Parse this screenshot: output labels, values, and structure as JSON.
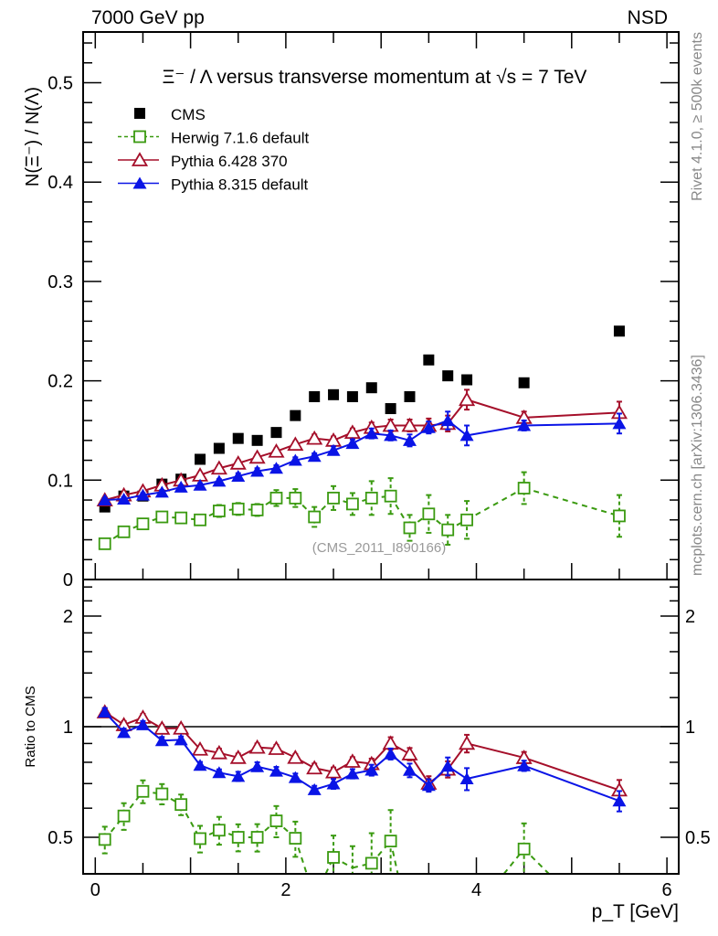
{
  "header": {
    "left": "7000 GeV pp",
    "right": "NSD"
  },
  "side_notes": {
    "rivet": "Rivet 4.1.0, ≥ 500k events",
    "mcplots": "mcplots.cern.ch [arXiv:1306.3436]"
  },
  "chart_data": [
    {
      "type": "scatter",
      "title": "Ξ⁻ / Λ versus transverse momentum at √s = 7 TeV",
      "xlabel": "p_T [GeV]",
      "ylabel": "N(Ξ⁻)  /  N(Λ)",
      "xlim": [
        -0.12,
        6.12
      ],
      "ylim": [
        0,
        0.55
      ],
      "yticks": [
        "0",
        "0.1",
        "0.2",
        "0.3",
        "0.4",
        "0.5"
      ],
      "xticks": [
        "0",
        "2",
        "4",
        "6"
      ],
      "annotation": "(CMS_2011_I890166)",
      "legend_position": "top-left",
      "x": [
        0.1,
        0.3,
        0.5,
        0.7,
        0.9,
        1.1,
        1.3,
        1.5,
        1.7,
        1.9,
        2.1,
        2.3,
        2.5,
        2.7,
        2.9,
        3.1,
        3.3,
        3.5,
        3.7,
        3.9,
        4.5,
        5.5
      ],
      "series": [
        {
          "name": "CMS",
          "color": "#000000",
          "marker": "filled-square",
          "line": "none",
          "values": [
            0.073,
            0.084,
            0.084,
            0.096,
            0.101,
            0.121,
            0.132,
            0.142,
            0.14,
            0.148,
            0.165,
            0.184,
            0.186,
            0.184,
            0.193,
            0.172,
            0.184,
            0.221,
            0.205,
            0.201,
            0.198,
            0.25
          ],
          "errors": []
        },
        {
          "name": "Herwig 7.1.6 default",
          "color": "#3a9a10",
          "marker": "open-square",
          "line": "dashed",
          "values": [
            0.036,
            0.048,
            0.056,
            0.063,
            0.062,
            0.06,
            0.069,
            0.071,
            0.07,
            0.082,
            0.082,
            0.063,
            0.082,
            0.076,
            0.082,
            0.084,
            0.052,
            0.066,
            0.05,
            0.06,
            0.092,
            0.064
          ],
          "errors": [
            0.003,
            0.004,
            0.004,
            0.004,
            0.004,
            0.005,
            0.006,
            0.006,
            0.006,
            0.008,
            0.009,
            0.01,
            0.012,
            0.011,
            0.017,
            0.018,
            0.013,
            0.019,
            0.015,
            0.019,
            0.016,
            0.021
          ]
        },
        {
          "name": "Pythia 6.428 370",
          "color": "#a50f2a",
          "marker": "open-triangle",
          "line": "solid",
          "values": [
            0.08,
            0.085,
            0.089,
            0.095,
            0.1,
            0.105,
            0.112,
            0.117,
            0.123,
            0.129,
            0.136,
            0.142,
            0.14,
            0.148,
            0.153,
            0.155,
            0.155,
            0.155,
            0.157,
            0.181,
            0.163,
            0.168
          ],
          "errors": [
            0.002,
            0.002,
            0.002,
            0.002,
            0.002,
            0.002,
            0.003,
            0.003,
            0.003,
            0.003,
            0.003,
            0.004,
            0.004,
            0.004,
            0.005,
            0.006,
            0.006,
            0.007,
            0.008,
            0.01,
            0.006,
            0.011
          ]
        },
        {
          "name": "Pythia 8.315 default",
          "color": "#0a14e6",
          "marker": "filled-triangle",
          "line": "solid",
          "values": [
            0.08,
            0.081,
            0.085,
            0.088,
            0.093,
            0.095,
            0.099,
            0.104,
            0.109,
            0.112,
            0.12,
            0.124,
            0.13,
            0.137,
            0.147,
            0.145,
            0.14,
            0.153,
            0.16,
            0.145,
            0.155,
            0.157
          ],
          "errors": [
            0.002,
            0.002,
            0.002,
            0.002,
            0.002,
            0.002,
            0.002,
            0.003,
            0.003,
            0.003,
            0.003,
            0.003,
            0.004,
            0.004,
            0.005,
            0.005,
            0.006,
            0.006,
            0.009,
            0.01,
            0.005,
            0.01
          ]
        }
      ]
    },
    {
      "type": "scatter",
      "title": "",
      "ylabel": "Ratio to CMS",
      "xlabel": "p_T [GeV]",
      "yscale": "log",
      "ylim": [
        0.4,
        2.5
      ],
      "yticks": [
        "0.5",
        "1",
        "2"
      ],
      "reference": "CMS",
      "note": "ratios = model / CMS from panel 1"
    }
  ]
}
